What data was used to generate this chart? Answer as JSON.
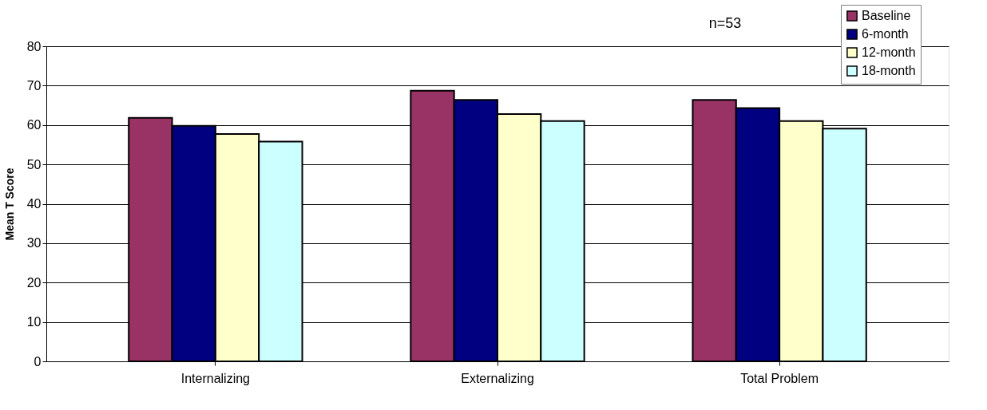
{
  "chart_data": {
    "type": "bar",
    "ylabel": "Mean T Score",
    "annotations": [
      "n=53"
    ],
    "categories": [
      "Internalizing",
      "Externalizing",
      "Total Problem"
    ],
    "series": [
      {
        "name": "Baseline",
        "color": "#993366",
        "values": [
          61.8,
          68.7,
          66.4
        ]
      },
      {
        "name": "6-month",
        "color": "#000080",
        "values": [
          59.8,
          66.4,
          64.3
        ]
      },
      {
        "name": "12-month",
        "color": "#ffffcc",
        "values": [
          57.7,
          62.8,
          61.0
        ]
      },
      {
        "name": "18-month",
        "color": "#ccffff",
        "values": [
          55.8,
          61.0,
          59.1
        ]
      }
    ],
    "ylim": [
      0,
      80
    ],
    "yticks": [
      0,
      10,
      20,
      30,
      40,
      50,
      60,
      70,
      80
    ],
    "grid": "y",
    "legend": "top right"
  }
}
